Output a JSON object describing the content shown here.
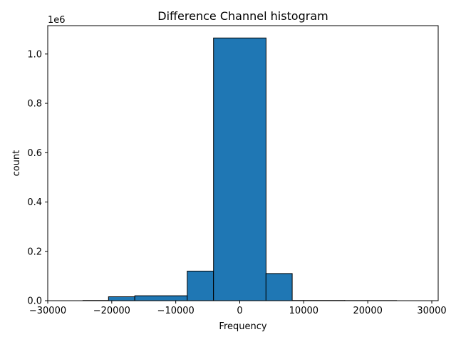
{
  "chart_data": {
    "type": "bar",
    "title": "Difference Channel histogram",
    "xlabel": "Frequency",
    "ylabel": "count",
    "y_offset_label": "1e6",
    "xlim": [
      -30000,
      31000
    ],
    "ylim": [
      0,
      1.115
    ],
    "xticks": [
      -30000,
      -20000,
      -10000,
      0,
      10000,
      20000,
      30000
    ],
    "xtick_labels": [
      "−30000",
      "−20000",
      "−10000",
      "0",
      "10000",
      "20000",
      "30000"
    ],
    "yticks": [
      0.0,
      0.2,
      0.4,
      0.6,
      0.8,
      1.0
    ],
    "ytick_labels": [
      "0.0",
      "0.2",
      "0.4",
      "0.6",
      "0.8",
      "1.0"
    ],
    "bar_color": "#1f77b4",
    "edge_color": "#000000",
    "bins": [
      {
        "x0": -28500,
        "x1": -24500,
        "value": 0.0
      },
      {
        "x0": -24500,
        "x1": -20500,
        "value": 0.001
      },
      {
        "x0": -20500,
        "x1": -16400,
        "value": 0.016
      },
      {
        "x0": -16400,
        "x1": -8200,
        "value": 0.02
      },
      {
        "x0": -8200,
        "x1": -4100,
        "value": 0.12
      },
      {
        "x0": -4100,
        "x1": 4100,
        "value": 1.065
      },
      {
        "x0": 4100,
        "x1": 8200,
        "value": 0.11
      },
      {
        "x0": 8200,
        "x1": 16400,
        "value": 0.001
      },
      {
        "x0": 16400,
        "x1": 24500,
        "value": 0.0005
      },
      {
        "x0": 24500,
        "x1": 28500,
        "value": 0.0
      }
    ]
  }
}
